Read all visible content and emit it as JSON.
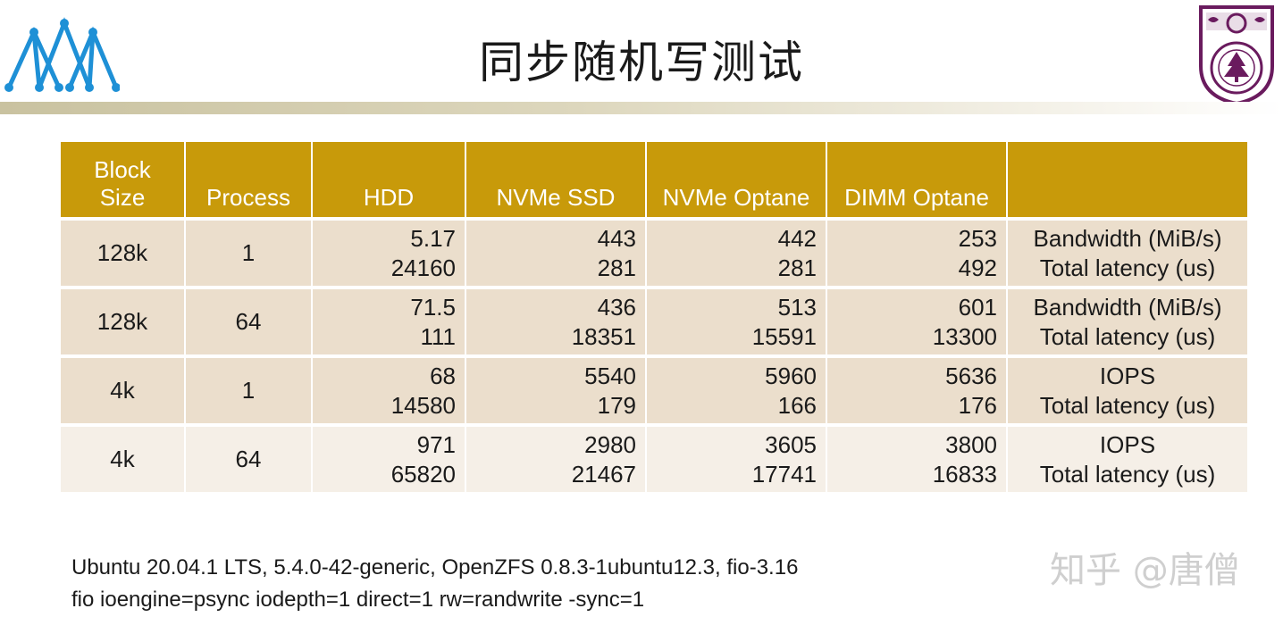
{
  "title": "同步随机写测试",
  "table": {
    "headers": [
      "Block\nSize",
      "Process",
      "HDD",
      "NVMe SSD",
      "NVMe Optane",
      "DIMM Optane",
      ""
    ],
    "header_block_size_line1": "Block",
    "header_block_size_line2": "Size",
    "header_process": "Process",
    "header_hdd": "HDD",
    "header_nvme_ssd": "NVMe SSD",
    "header_nvme_optane": "NVMe Optane",
    "header_dimm_optane": "DIMM Optane",
    "rows": [
      {
        "block": "128k",
        "process": "1",
        "hdd": [
          "5.17",
          "24160"
        ],
        "nvme_ssd": [
          "443",
          "281"
        ],
        "nvme_optane": [
          "442",
          "281"
        ],
        "dimm_optane": [
          "253",
          "492"
        ],
        "metric": [
          "Bandwidth (MiB/s)",
          "Total latency (us)"
        ]
      },
      {
        "block": "128k",
        "process": "64",
        "hdd": [
          "71.5",
          "111"
        ],
        "nvme_ssd": [
          "436",
          "18351"
        ],
        "nvme_optane": [
          "513",
          "15591"
        ],
        "dimm_optane": [
          "601",
          "13300"
        ],
        "metric": [
          "Bandwidth (MiB/s)",
          "Total latency (us)"
        ]
      },
      {
        "block": "4k",
        "process": "1",
        "hdd": [
          "68",
          "14580"
        ],
        "nvme_ssd": [
          "5540",
          "179"
        ],
        "nvme_optane": [
          "5960",
          "166"
        ],
        "dimm_optane": [
          "5636",
          "176"
        ],
        "metric": [
          "IOPS",
          "Total latency (us)"
        ]
      },
      {
        "block": "4k",
        "process": "64",
        "hdd": [
          "971",
          "65820"
        ],
        "nvme_ssd": [
          "2980",
          "21467"
        ],
        "nvme_optane": [
          "3605",
          "17741"
        ],
        "dimm_optane": [
          "3800",
          "16833"
        ],
        "metric": [
          "IOPS",
          "Total latency (us)"
        ]
      }
    ]
  },
  "footer": {
    "line1": "Ubuntu 20.04.1 LTS, 5.4.0-42-generic, OpenZFS 0.8.3-1ubuntu12.3, fio-3.16",
    "line2": "fio ioengine=psync iodepth=1 direct=1 rw=randwrite -sync=1"
  },
  "watermark": "知乎 @唐僧",
  "colors": {
    "header_bg": "#c89a0a",
    "row_odd_bg": "#ebdecc",
    "row_even_bg": "#f5efe7",
    "logo_blue": "#1e90d6",
    "crest_purple": "#6a1b5e"
  },
  "icons": {
    "left_logo": "mountain-network-logo",
    "right_logo": "university-crest-logo"
  }
}
